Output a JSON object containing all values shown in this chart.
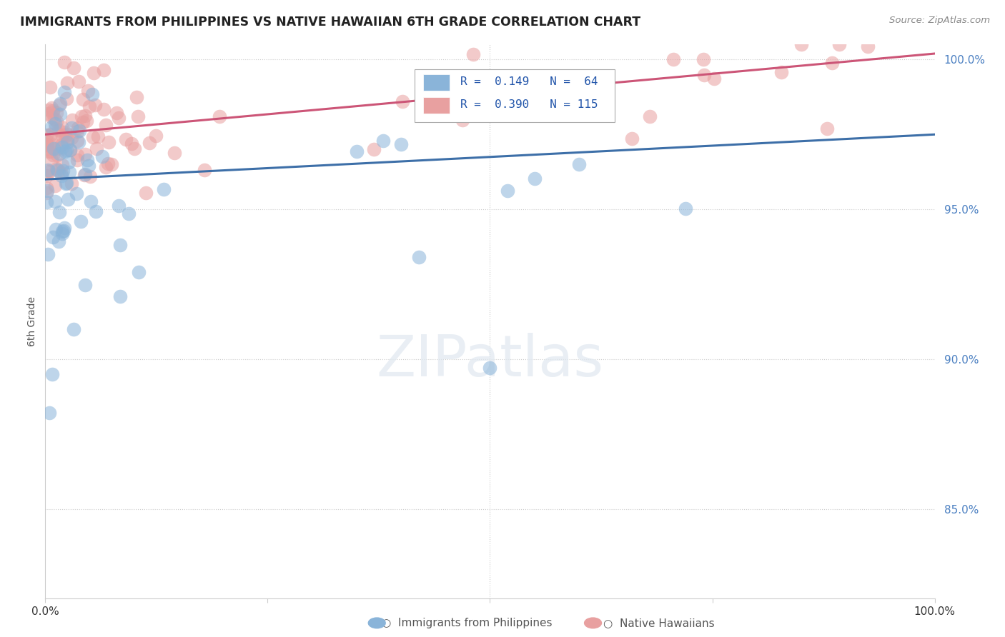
{
  "title": "IMMIGRANTS FROM PHILIPPINES VS NATIVE HAWAIIAN 6TH GRADE CORRELATION CHART",
  "source": "Source: ZipAtlas.com",
  "ylabel": "6th Grade",
  "xlim": [
    0.0,
    1.0
  ],
  "ylim": [
    0.82,
    1.005
  ],
  "yticks": [
    0.85,
    0.9,
    0.95,
    1.0
  ],
  "ytick_labels": [
    "85.0%",
    "90.0%",
    "95.0%",
    "100.0%"
  ],
  "blue_R": 0.149,
  "blue_N": 64,
  "pink_R": 0.39,
  "pink_N": 115,
  "blue_color": "#8ab4d9",
  "pink_color": "#e8a0a0",
  "blue_line_color": "#3d6fa8",
  "pink_line_color": "#cc5577",
  "legend_label_blue": "Immigrants from Philippines",
  "legend_label_pink": "Native Hawaiians",
  "blue_trend_x0": 0.0,
  "blue_trend_y0": 0.96,
  "blue_trend_x1": 1.0,
  "blue_trend_y1": 0.975,
  "pink_trend_x0": 0.0,
  "pink_trend_y0": 0.975,
  "pink_trend_x1": 1.0,
  "pink_trend_y1": 1.002
}
